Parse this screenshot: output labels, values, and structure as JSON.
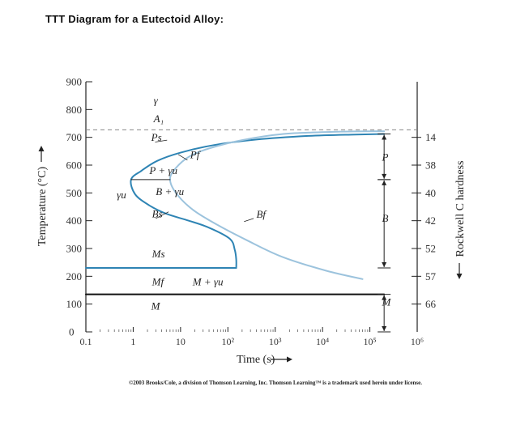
{
  "page_title": "TTT Diagram for a Eutectoid Alloy:",
  "copyright": "©2003 Brooks/Cole, a division of Thomson Learning, Inc.  Thomson Learning™ is a trademark used herein under license.",
  "chart_data": {
    "type": "line",
    "title": "TTT Diagram for a Eutectoid Alloy:",
    "xlabel": "Time (s)",
    "ylabel": "Temperature (°C)",
    "y2label": "Rockwell C hardness",
    "x_scale": "log",
    "xlim": [
      0.1,
      1000000
    ],
    "ylim": [
      0,
      900
    ],
    "x_ticks": [
      {
        "value": 0.1,
        "label": "0.1"
      },
      {
        "value": 1,
        "label": "1"
      },
      {
        "value": 10,
        "label": "10"
      },
      {
        "value": 100,
        "label": "10²"
      },
      {
        "value": 1000,
        "label": "10³"
      },
      {
        "value": 10000,
        "label": "10⁴"
      },
      {
        "value": 100000,
        "label": "10⁵"
      },
      {
        "value": 1000000,
        "label": "10⁶"
      }
    ],
    "y_ticks": [
      {
        "value": 0,
        "label": "0"
      },
      {
        "value": 100,
        "label": "100"
      },
      {
        "value": 200,
        "label": "200"
      },
      {
        "value": 300,
        "label": "300"
      },
      {
        "value": 400,
        "label": "400"
      },
      {
        "value": 500,
        "label": "500"
      },
      {
        "value": 600,
        "label": "600"
      },
      {
        "value": 700,
        "label": "700"
      },
      {
        "value": 800,
        "label": "800"
      },
      {
        "value": 900,
        "label": "900"
      }
    ],
    "hardness_ticks": [
      {
        "temp": 700,
        "label": "14"
      },
      {
        "temp": 600,
        "label": "38"
      },
      {
        "temp": 500,
        "label": "40"
      },
      {
        "temp": 400,
        "label": "42"
      },
      {
        "temp": 300,
        "label": "52"
      },
      {
        "temp": 200,
        "label": "57"
      },
      {
        "temp": 100,
        "label": "66"
      }
    ],
    "a1_temperature": 727,
    "series": [
      {
        "name": "Ps",
        "color": "#2e84b4",
        "points": [
          [
            200000,
            712
          ],
          [
            50000,
            710
          ],
          [
            5000,
            705
          ],
          [
            400,
            692
          ],
          [
            50,
            672
          ],
          [
            10,
            645
          ],
          [
            3.2,
            615
          ],
          [
            1.5,
            580
          ],
          [
            0.9,
            548
          ],
          [
            1.1,
            495
          ],
          [
            2.2,
            455
          ],
          [
            5,
            425
          ],
          [
            15,
            400
          ],
          [
            40,
            375
          ],
          [
            110,
            335
          ],
          [
            140,
            295
          ],
          [
            150,
            260
          ],
          [
            150,
            230
          ]
        ]
      },
      {
        "name": "Pf",
        "color": "#9cc3dd",
        "points": [
          [
            200000,
            722
          ],
          [
            20000,
            720
          ],
          [
            1500,
            712
          ],
          [
            200,
            690
          ],
          [
            40,
            660
          ],
          [
            15,
            630
          ],
          [
            8,
            590
          ],
          [
            6,
            550
          ],
          [
            8,
            500
          ],
          [
            18,
            440
          ],
          [
            60,
            385
          ],
          [
            250,
            330
          ],
          [
            1400,
            270
          ],
          [
            12000,
            220
          ],
          [
            70000,
            190
          ]
        ]
      },
      {
        "name": "Ms",
        "color": "#2e84b4",
        "points": [
          [
            0.1,
            230
          ],
          [
            150,
            230
          ]
        ]
      },
      {
        "name": "Mf",
        "color": "#111111",
        "points": [
          [
            0.1,
            135
          ],
          [
            200000,
            135
          ]
        ]
      },
      {
        "name": "P+γu nose line",
        "color": "#222222",
        "points": [
          [
            0.9,
            548
          ],
          [
            6,
            548
          ]
        ]
      }
    ],
    "labels": [
      {
        "text": "γ",
        "x": 2.7,
        "y": 820
      },
      {
        "text": "A₁",
        "x": 2.7,
        "y": 755
      },
      {
        "text": "Ps",
        "x": 2.4,
        "y": 688
      },
      {
        "text": "Pf",
        "x": 16,
        "y": 625
      },
      {
        "text": "P + γu",
        "x": 2.2,
        "y": 568
      },
      {
        "text": "γu",
        "x": 0.45,
        "y": 480
      },
      {
        "text": "B + γu",
        "x": 3.0,
        "y": 492
      },
      {
        "text": "Bs",
        "x": 2.5,
        "y": 412
      },
      {
        "text": "Bf",
        "x": 400,
        "y": 410
      },
      {
        "text": "Ms",
        "x": 2.5,
        "y": 268
      },
      {
        "text": "Mf",
        "x": 2.5,
        "y": 168
      },
      {
        "text": "M + γu",
        "x": 18,
        "y": 168
      },
      {
        "text": "M",
        "x": 2.4,
        "y": 80
      },
      {
        "text": "P",
        "x": 180000,
        "y": 616
      },
      {
        "text": "B",
        "x": 180000,
        "y": 396
      },
      {
        "text": "M",
        "x": 180000,
        "y": 95
      }
    ]
  }
}
